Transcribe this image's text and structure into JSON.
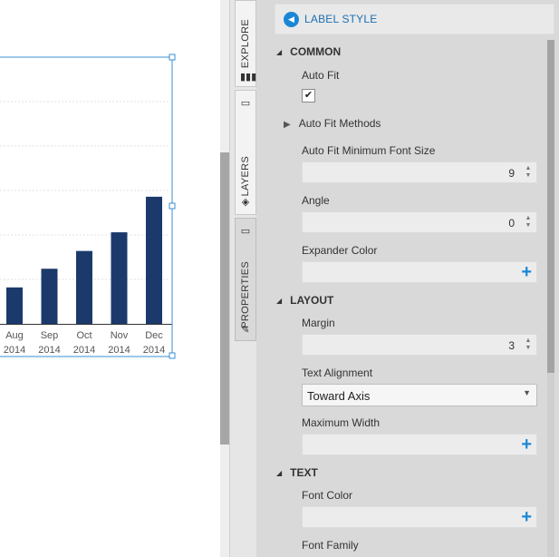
{
  "chart_data": {
    "type": "bar",
    "categories": [
      "Aug",
      "Sep",
      "Oct",
      "Nov",
      "Dec"
    ],
    "years": [
      "2014",
      "2014",
      "2014",
      "2014",
      "2014"
    ],
    "values": [
      41,
      62,
      82,
      103,
      143
    ],
    "ylim": [
      0,
      300
    ],
    "grid": true,
    "bar_color": "#1b3a6b"
  },
  "tabs": {
    "explore": "EXPLORE",
    "layers": "LAYERS",
    "properties": "PROPERTIES"
  },
  "panel": {
    "title": "LABEL STYLE",
    "accent_color": "#1a87d6",
    "sections": {
      "common": "COMMON",
      "layout": "LAYOUT",
      "text": "TEXT"
    },
    "fields": {
      "auto_fit": {
        "label": "Auto Fit",
        "checked": "✔"
      },
      "auto_fit_methods": "Auto Fit Methods",
      "auto_fit_min_font": {
        "label": "Auto Fit Minimum Font Size",
        "value": "9"
      },
      "angle": {
        "label": "Angle",
        "value": "0"
      },
      "expander_color": {
        "label": "Expander Color"
      },
      "margin": {
        "label": "Margin",
        "value": "3"
      },
      "text_alignment": {
        "label": "Text Alignment",
        "value": "Toward Axis"
      },
      "max_width": {
        "label": "Maximum Width"
      },
      "font_color": {
        "label": "Font Color"
      },
      "font_family": {
        "label": "Font Family"
      }
    }
  }
}
